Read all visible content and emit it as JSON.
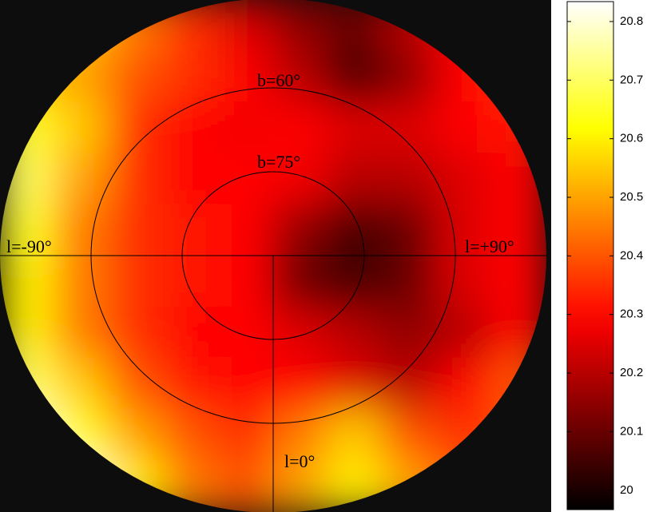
{
  "chart_data": {
    "type": "heatmap",
    "labels": [
      {
        "text": "b=60°"
      },
      {
        "text": "b=75°"
      },
      {
        "text": "l=-90°"
      },
      {
        "text": "l=+90°"
      },
      {
        "text": "l=0°"
      }
    ],
    "z": [
      [
        20.6,
        20.55,
        20.45,
        20.35,
        20.25,
        20.15,
        20.1,
        20.2,
        20.3,
        20.35
      ],
      [
        20.55,
        20.5,
        20.4,
        20.35,
        20.3,
        20.2,
        20.05,
        20.15,
        20.3,
        20.35
      ],
      [
        20.65,
        20.55,
        20.35,
        20.3,
        20.28,
        20.3,
        20.25,
        20.25,
        20.3,
        20.32
      ],
      [
        20.7,
        20.5,
        20.35,
        20.3,
        20.3,
        20.28,
        20.2,
        20.2,
        20.25,
        20.3
      ],
      [
        20.65,
        20.45,
        20.35,
        20.32,
        20.3,
        20.15,
        20.05,
        20.1,
        20.25,
        20.3
      ],
      [
        20.6,
        20.45,
        20.35,
        20.32,
        20.3,
        20.1,
        20.05,
        20.1,
        20.25,
        20.3
      ],
      [
        20.6,
        20.45,
        20.35,
        20.3,
        20.3,
        20.25,
        20.2,
        20.15,
        20.2,
        20.3
      ],
      [
        20.7,
        20.55,
        20.4,
        20.32,
        20.3,
        20.3,
        20.25,
        20.2,
        20.3,
        20.4
      ],
      [
        20.8,
        20.65,
        20.5,
        20.4,
        20.35,
        20.45,
        20.55,
        20.4,
        20.35,
        20.4
      ],
      [
        20.8,
        20.8,
        20.6,
        20.45,
        20.4,
        20.5,
        20.6,
        20.5,
        20.4,
        20.4
      ]
    ],
    "colormap": "hot",
    "clim": [
      19.967,
      20.834
    ],
    "cticks": [
      20,
      20.1,
      20.2,
      20.3,
      20.4,
      20.5,
      20.6,
      20.7,
      20.8
    ]
  }
}
